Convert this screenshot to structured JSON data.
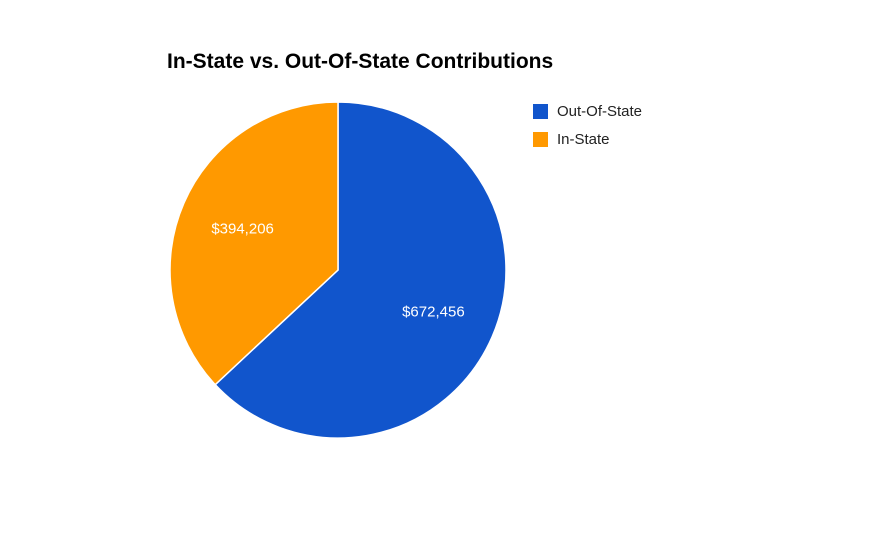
{
  "chart_data": {
    "type": "pie",
    "title": "In-State vs. Out-Of-State Contributions",
    "slices": [
      {
        "label": "Out-Of-State",
        "value": 672456,
        "value_label": "$672,456",
        "color": "#1155cc"
      },
      {
        "label": "In-State",
        "value": 394206,
        "value_label": "$394,206",
        "color": "#ff9900"
      }
    ],
    "legend_position": "right"
  }
}
